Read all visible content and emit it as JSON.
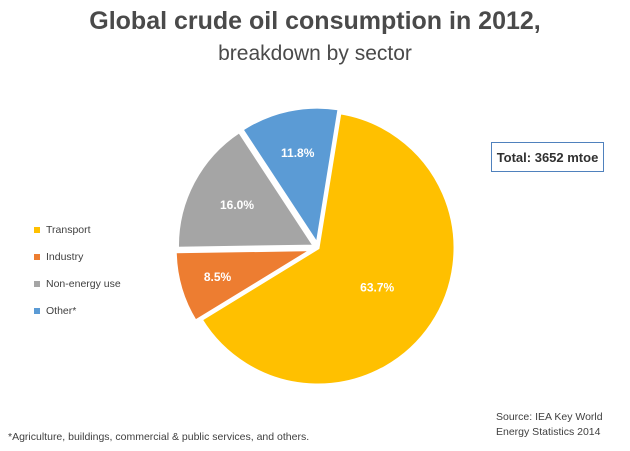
{
  "chart_data": {
    "type": "pie",
    "title": "Global crude oil consumption in 2012,",
    "subtitle": "breakdown by sector",
    "slices": [
      {
        "name": "Transport",
        "value": 63.7,
        "label": "63.7%",
        "color": "#ffc000"
      },
      {
        "name": "Industry",
        "value": 8.5,
        "label": "8.5%",
        "color": "#ed7d31"
      },
      {
        "name": "Non-energy use",
        "value": 16.0,
        "label": "16.0%",
        "color": "#a5a5a5"
      },
      {
        "name": "Other*",
        "value": 11.8,
        "label": "11.8%",
        "color": "#5b9bd5"
      }
    ],
    "legend_position": "left"
  },
  "total_label": "Total: 3652 mtoe",
  "source_line1": "Source: IEA Key World",
  "source_line2": "Energy Statistics 2014",
  "footnote": "*Agriculture, buildings, commercial & public services, and others."
}
